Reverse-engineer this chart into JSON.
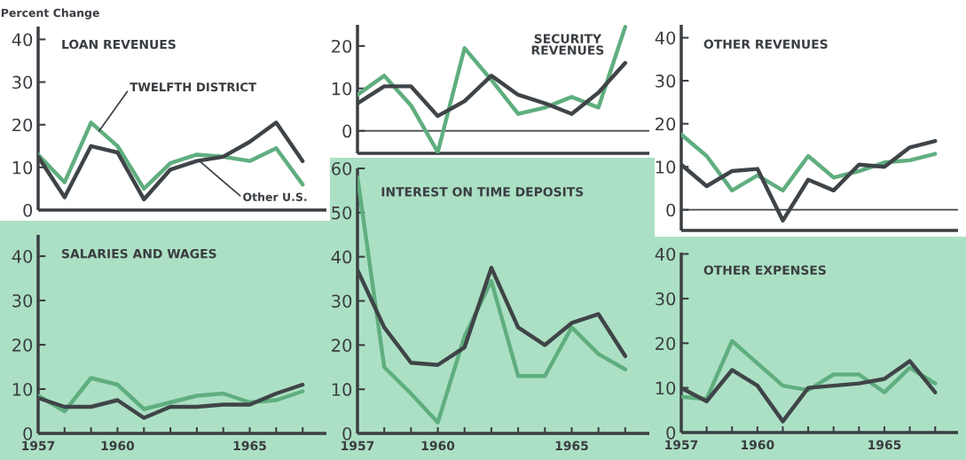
{
  "chart_data": [
    {
      "type": "line",
      "title": "LOAN REVENUES",
      "ylabel": "Percent Change",
      "x": [
        1957,
        1958,
        1959,
        1960,
        1961,
        1962,
        1963,
        1964,
        1965,
        1966,
        1967
      ],
      "xlim": [
        1957,
        1967.9
      ],
      "ylim": [
        0,
        43
      ],
      "yticks": [
        0,
        10,
        20,
        30,
        40
      ],
      "tick_labels": "y",
      "grid": false,
      "legend": false,
      "series": [
        {
          "color": "#5fae7f",
          "values": [
            13,
            6.5,
            20.5,
            15,
            5,
            11,
            13,
            12.5,
            11.5,
            14.5,
            6
          ]
        },
        {
          "color": "#3f4448",
          "values": [
            12.5,
            3,
            15,
            13.5,
            2.5,
            9.5,
            11.5,
            12.5,
            16,
            20.5,
            11.5
          ]
        }
      ],
      "annotations": [
        {
          "text": "TWELFTH DISTRICT",
          "x": 1959.3,
          "y": 18.5
        },
        {
          "text": "Other U.S.",
          "x": 1963.1,
          "y": 11.5
        }
      ]
    },
    {
      "type": "line",
      "title": "SECURITY\nREVENUES",
      "x": [
        1957,
        1958,
        1959,
        1960,
        1961,
        1962,
        1963,
        1964,
        1965,
        1966,
        1967
      ],
      "xlim": [
        1957,
        1967.9
      ],
      "ylim": [
        -5.3,
        25
      ],
      "yticks": [
        0,
        10,
        20
      ],
      "tick_labels": "y",
      "grid": false,
      "legend": false,
      "series": [
        {
          "color": "#5fae7f",
          "values": [
            8.5,
            13,
            6,
            -5,
            19.5,
            12,
            4,
            5.5,
            8,
            5.5,
            24.5
          ]
        },
        {
          "color": "#3f4448",
          "values": [
            6.5,
            10.5,
            10.5,
            3.5,
            7,
            13,
            8.5,
            6.5,
            4,
            9,
            16
          ]
        }
      ],
      "ref_lines": [
        {
          "axis": "y",
          "value": 0,
          "color": "#3f4448"
        }
      ]
    },
    {
      "type": "line",
      "title": "OTHER REVENUES",
      "x": [
        1957,
        1958,
        1959,
        1960,
        1961,
        1962,
        1963,
        1964,
        1965,
        1966,
        1967
      ],
      "xlim": [
        1957,
        1967.9
      ],
      "ylim": [
        -4.8,
        43
      ],
      "yticks": [
        0,
        10,
        20,
        30,
        40
      ],
      "tick_labels": "y",
      "grid": false,
      "legend": false,
      "series": [
        {
          "color": "#5fae7f",
          "values": [
            17.5,
            12.5,
            4.5,
            8,
            4.5,
            12.5,
            7.5,
            9,
            11,
            11.5,
            13
          ]
        },
        {
          "color": "#3f4448",
          "values": [
            10.5,
            5.5,
            9,
            9.5,
            -2.5,
            7,
            4.5,
            10.5,
            10,
            14.5,
            16
          ]
        }
      ],
      "ref_lines": [
        {
          "axis": "y",
          "value": 0,
          "color": "#3f4448"
        }
      ]
    },
    {
      "type": "line",
      "title": "SALARIES AND WAGES",
      "x": [
        1957,
        1958,
        1959,
        1960,
        1961,
        1962,
        1963,
        1964,
        1965,
        1966,
        1967
      ],
      "xlim": [
        1957,
        1967.9
      ],
      "ylim": [
        0,
        44.8
      ],
      "yticks": [
        0,
        10,
        20,
        30,
        40
      ],
      "xticks": [
        1957,
        {
          "value": 1958,
          "label": null
        },
        {
          "value": 1959,
          "label": null
        },
        1960,
        {
          "value": 1961,
          "label": null
        },
        {
          "value": 1962,
          "label": null
        },
        {
          "value": 1963,
          "label": null
        },
        {
          "value": 1964,
          "label": null
        },
        1965,
        {
          "value": 1966,
          "label": null
        },
        {
          "value": 1967,
          "label": null
        }
      ],
      "grid": false,
      "legend": false,
      "series": [
        {
          "color": "#5fae7f",
          "values": [
            8.5,
            5,
            12.5,
            11,
            5.5,
            7,
            8.5,
            9,
            7,
            7.5,
            9.5
          ]
        },
        {
          "color": "#3f4448",
          "values": [
            8,
            6,
            6,
            7.5,
            3.5,
            6,
            6,
            6.5,
            6.5,
            9,
            11
          ]
        }
      ]
    },
    {
      "type": "line",
      "title": "INTEREST ON TIME DEPOSITS",
      "x": [
        1957,
        1958,
        1959,
        1960,
        1961,
        1962,
        1963,
        1964,
        1965,
        1966,
        1967
      ],
      "xlim": [
        1957,
        1967.9
      ],
      "ylim": [
        0,
        60
      ],
      "yticks": [
        0,
        10,
        20,
        30,
        40,
        50,
        60
      ],
      "xticks": [
        1957,
        {
          "value": 1958,
          "label": null
        },
        {
          "value": 1959,
          "label": null
        },
        1960,
        {
          "value": 1961,
          "label": null
        },
        {
          "value": 1962,
          "label": null
        },
        {
          "value": 1963,
          "label": null
        },
        {
          "value": 1964,
          "label": null
        },
        1965,
        {
          "value": 1966,
          "label": null
        },
        {
          "value": 1967,
          "label": null
        }
      ],
      "grid": false,
      "legend": false,
      "series": [
        {
          "color": "#5fae7f",
          "values": [
            58,
            15,
            9,
            2.5,
            22,
            34.5,
            13,
            13,
            24,
            18,
            14.5
          ]
        },
        {
          "color": "#3f4448",
          "values": [
            37,
            24,
            16,
            15.5,
            19.5,
            37.5,
            24,
            20,
            25,
            27,
            17.5
          ]
        }
      ]
    },
    {
      "type": "line",
      "title": "OTHER EXPENSES",
      "x": [
        1957,
        1958,
        1959,
        1960,
        1961,
        1962,
        1963,
        1964,
        1965,
        1966,
        1967
      ],
      "xlim": [
        1957,
        1967.9
      ],
      "ylim": [
        0,
        40.3
      ],
      "yticks": [
        0,
        10,
        20,
        30,
        40
      ],
      "xticks": [
        1957,
        {
          "value": 1958,
          "label": null
        },
        {
          "value": 1959,
          "label": null
        },
        1960,
        {
          "value": 1961,
          "label": null
        },
        {
          "value": 1962,
          "label": null
        },
        {
          "value": 1963,
          "label": null
        },
        {
          "value": 1964,
          "label": null
        },
        1965,
        {
          "value": 1966,
          "label": null
        },
        {
          "value": 1967,
          "label": null
        }
      ],
      "grid": false,
      "legend": false,
      "series": [
        {
          "color": "#5fae7f",
          "values": [
            8,
            7.5,
            20.5,
            15.5,
            10.5,
            9.5,
            13,
            13,
            9,
            14.5,
            11
          ]
        },
        {
          "color": "#3f4448",
          "values": [
            10,
            7,
            14,
            10.5,
            2.5,
            10,
            10.5,
            11,
            12,
            16,
            9
          ]
        }
      ]
    }
  ]
}
